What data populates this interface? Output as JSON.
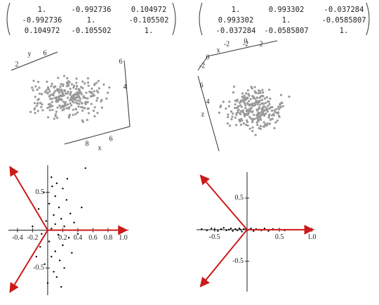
{
  "matrices": [
    {
      "rows": [
        [
          "1.",
          "-0.992736",
          "0.104972"
        ],
        [
          "-0.992736",
          "1.",
          "-0.105502"
        ],
        [
          "0.104972",
          "-0.105502",
          "1."
        ]
      ]
    },
    {
      "rows": [
        [
          "1.",
          "0.993302",
          "-0.037284"
        ],
        [
          "0.993302",
          "1.",
          "-0.0585807"
        ],
        [
          "-0.037284",
          "-0.0585807",
          "1."
        ]
      ]
    }
  ],
  "plots3d": [
    {
      "labels": [
        "2",
        "y",
        "6",
        "6",
        "4",
        "8",
        "x",
        "6"
      ]
    },
    {
      "labels": [
        "x",
        "-2",
        "-2",
        "0",
        "2",
        "-2",
        "0",
        "6",
        "4",
        "z"
      ]
    }
  ],
  "chart_data": [
    {
      "type": "scatter",
      "color": "#000000",
      "arrow_color": "#cc1a1a",
      "x": [
        0.05,
        0.12,
        0.2,
        -0.05,
        0.1,
        0.25,
        0.02,
        0.15,
        -0.12,
        0.3,
        0.08,
        0.18,
        -0.02,
        0.1,
        0.22,
        0.35,
        0.05,
        -0.08,
        0.14,
        0.28,
        0.02,
        0.2,
        -0.1,
        0.1,
        0.32,
        0.05,
        0.16,
        -0.04,
        0.22,
        0.08,
        0.12,
        0.0,
        0.18,
        0.45,
        -0.2,
        0.4,
        0.06,
        -0.15,
        0.26,
        0.5
      ],
      "y": [
        0.7,
        0.62,
        0.55,
        0.5,
        0.45,
        0.4,
        0.35,
        0.3,
        0.28,
        0.22,
        0.2,
        0.15,
        0.12,
        0.08,
        0.05,
        0.1,
        0.02,
        -0.05,
        -0.06,
        -0.1,
        -0.15,
        -0.2,
        -0.22,
        -0.28,
        -0.3,
        -0.35,
        -0.4,
        -0.45,
        -0.5,
        -0.55,
        -0.62,
        -0.7,
        -0.75,
        0.3,
        0.05,
        -0.05,
        0.58,
        -0.35,
        0.68,
        0.82
      ],
      "arrows": {
        "x": [
          1.05,
          -0.5,
          -0.5
        ],
        "y": [
          0,
          0.84,
          -0.82
        ]
      },
      "xlim": [
        -0.52,
        1.07
      ],
      "ylim": [
        -0.86,
        0.86
      ],
      "xticks": [
        -0.4,
        -0.2,
        0.2,
        0.4,
        0.6,
        0.8,
        {
          "value": 1,
          "label": "1.0"
        }
      ],
      "yticks": [
        -0.5,
        0.5
      ]
    },
    {
      "type": "scatter",
      "color": "#000000",
      "arrow_color": "#cc1a1a",
      "x": [
        -0.7,
        -0.62,
        -0.55,
        -0.5,
        -0.45,
        -0.4,
        -0.36,
        -0.32,
        -0.28,
        -0.25,
        -0.22,
        -0.18,
        -0.15,
        -0.12,
        -0.1,
        -0.08,
        -0.05,
        -0.02,
        0.0,
        0.03,
        0.06,
        0.1,
        0.14,
        0.18,
        0.22,
        0.27,
        0.33,
        0.4,
        0.48,
        0.58
      ],
      "y": [
        0.01,
        -0.01,
        0.02,
        0.0,
        -0.02,
        0.01,
        0.03,
        -0.01,
        0.0,
        0.02,
        -0.02,
        0.01,
        -0.01,
        0.02,
        0.0,
        -0.03,
        0.01,
        0.02,
        -0.01,
        0.0,
        0.02,
        -0.02,
        0.01,
        0.0,
        -0.01,
        0.02,
        -0.02,
        0.01,
        0.0,
        -0.01
      ],
      "arrows": {
        "x": [
          1.02,
          -0.72,
          -0.72
        ],
        "y": [
          0,
          0.86,
          -0.9
        ]
      },
      "xlim": [
        -0.78,
        1.04
      ],
      "ylim": [
        -0.98,
        0.91
      ],
      "xticks": [
        -0.5,
        0.5,
        {
          "value": 1,
          "label": "1.0"
        }
      ],
      "yticks": [
        -0.5,
        0.5
      ]
    }
  ]
}
